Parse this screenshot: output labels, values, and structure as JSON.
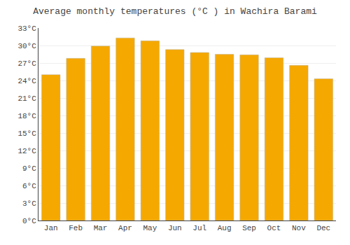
{
  "chart_data": {
    "type": "bar",
    "title": "Average monthly temperatures (°C ) in Wachira Barami",
    "categories": [
      "Jan",
      "Feb",
      "Mar",
      "Apr",
      "May",
      "Jun",
      "Jul",
      "Aug",
      "Sep",
      "Oct",
      "Nov",
      "Dec"
    ],
    "values": [
      25.0,
      27.8,
      29.9,
      31.3,
      30.8,
      29.3,
      28.8,
      28.5,
      28.4,
      27.9,
      26.6,
      24.3
    ],
    "color": "#F5A800",
    "ylim": [
      0,
      33
    ],
    "yticks": [
      {
        "value": 0,
        "label": "0°C"
      },
      {
        "value": 3,
        "label": "3°C"
      },
      {
        "value": 6,
        "label": "6°C"
      },
      {
        "value": 9,
        "label": "9°C"
      },
      {
        "value": 12,
        "label": "12°C"
      },
      {
        "value": 15,
        "label": "15°C"
      },
      {
        "value": 18,
        "label": "18°C"
      },
      {
        "value": 21,
        "label": "21°C"
      },
      {
        "value": 24,
        "label": "24°C"
      },
      {
        "value": 27,
        "label": "27°C"
      },
      {
        "value": 30,
        "label": "30°C"
      },
      {
        "value": 33,
        "label": "33°C"
      }
    ],
    "grid": true
  }
}
